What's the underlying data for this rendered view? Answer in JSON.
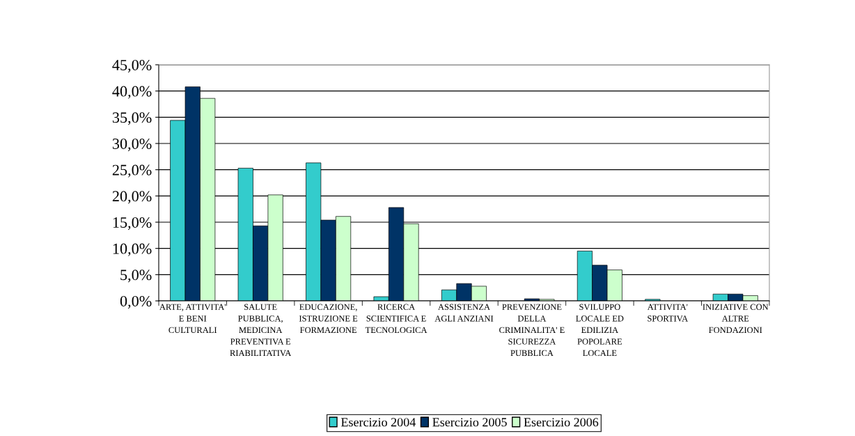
{
  "chart_data": {
    "type": "bar",
    "categories": [
      "ARTE, ATTIVITA'\nE BENI\nCULTURALI",
      "SALUTE\nPUBBLICA,\nMEDICINA\nPREVENTIVA E\nRIABILITATIVA",
      "EDUCAZIONE,\nISTRUZIONE E\nFORMAZIONE",
      "RICERCA\nSCIENTIFICA E\nTECNOLOGICA",
      "ASSISTENZA\nAGLI ANZIANI",
      "PREVENZIONE\nDELLA\nCRIMINALITA' E\nSICUREZZA\nPUBBLICA",
      "SVILUPPO\nLOCALE ED\nEDILIZIA\nPOPOLARE\nLOCALE",
      "ATTIVITA'\nSPORTIVA",
      "INIZIATIVE CON\nALTRE\nFONDAZIONI"
    ],
    "series": [
      {
        "name": "Esercizio 2004",
        "color": "#33cccc",
        "values": [
          34.4,
          25.3,
          26.3,
          0.8,
          2.1,
          null,
          9.5,
          0.3,
          1.3
        ]
      },
      {
        "name": "Esercizio 2005",
        "color": "#003366",
        "values": [
          40.8,
          14.3,
          15.4,
          17.8,
          3.3,
          0.4,
          6.8,
          null,
          1.3
        ]
      },
      {
        "name": "Esercizio 2006",
        "color": "#ccffcc",
        "values": [
          38.6,
          20.2,
          16.1,
          14.7,
          2.8,
          0.3,
          5.9,
          null,
          1.0
        ]
      }
    ],
    "ylim": [
      0,
      45
    ],
    "yticks": [
      {
        "value": 0,
        "label": "0,0%"
      },
      {
        "value": 5,
        "label": "5,0%"
      },
      {
        "value": 10,
        "label": "10,0%"
      },
      {
        "value": 15,
        "label": "15,0%"
      },
      {
        "value": 20,
        "label": "20,0%"
      },
      {
        "value": 25,
        "label": "25,0%"
      },
      {
        "value": 30,
        "label": "30,0%"
      },
      {
        "value": 35,
        "label": "35,0%"
      },
      {
        "value": 40,
        "label": "40,0%"
      },
      {
        "value": 45,
        "label": "45,0%"
      }
    ],
    "grid": "y",
    "legend": "bottom"
  }
}
